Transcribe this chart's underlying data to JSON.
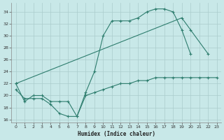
{
  "line1_x": [
    0,
    1,
    2,
    3,
    4,
    5,
    6,
    7,
    8,
    9,
    10,
    11,
    12,
    13,
    14,
    15,
    16,
    17,
    18,
    19,
    20
  ],
  "line1_y": [
    22,
    19,
    20,
    20,
    19,
    19,
    19,
    16.5,
    20.5,
    24,
    30,
    32.5,
    32.5,
    32.5,
    33,
    34,
    34.5,
    34.5,
    34,
    31,
    27
  ],
  "line2_x": [
    0,
    19,
    20,
    22
  ],
  "line2_y": [
    22,
    33,
    31,
    27
  ],
  "line3_x": [
    0,
    1,
    2,
    3,
    4,
    5,
    6,
    7,
    8,
    9,
    10,
    11,
    12,
    13,
    14,
    15,
    16,
    17,
    18,
    19,
    20,
    21,
    22,
    23
  ],
  "line3_y": [
    21,
    19.5,
    19.5,
    19.5,
    18.5,
    17,
    16.5,
    16.5,
    20,
    20.5,
    21,
    21.5,
    22,
    22,
    22.5,
    22.5,
    23,
    23,
    23,
    23,
    23,
    23,
    23,
    23
  ],
  "color": "#2e7d6e",
  "bg_color": "#c8e8e8",
  "grid_color": "#aacccc",
  "xlabel": "Humidex (Indice chaleur)",
  "ylim": [
    15.5,
    35.5
  ],
  "xlim": [
    -0.5,
    23.5
  ],
  "yticks": [
    16,
    18,
    20,
    22,
    24,
    26,
    28,
    30,
    32,
    34
  ],
  "xticks": [
    0,
    1,
    2,
    3,
    4,
    5,
    6,
    7,
    8,
    9,
    10,
    11,
    12,
    13,
    14,
    15,
    16,
    17,
    18,
    19,
    20,
    21,
    22,
    23
  ]
}
